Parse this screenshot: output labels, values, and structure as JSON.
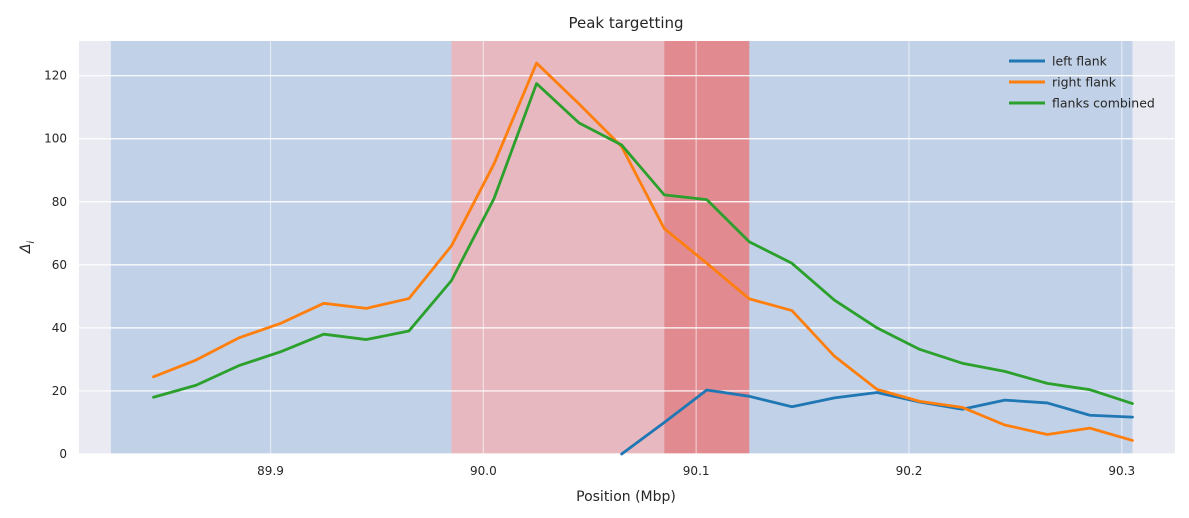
{
  "chart_data": {
    "type": "line",
    "title": "Peak targetting",
    "xlabel": "Position (Mbp)",
    "ylabel": "Δ_i",
    "xlim": [
      89.81,
      90.325
    ],
    "ylim": [
      0,
      131
    ],
    "xticks": [
      89.9,
      90.0,
      90.1,
      90.2,
      90.3
    ],
    "xtick_labels": [
      "89.9",
      "90.0",
      "90.1",
      "90.2",
      "90.3"
    ],
    "yticks": [
      0,
      20,
      40,
      60,
      80,
      100,
      120
    ],
    "ytick_labels": [
      "0",
      "20",
      "40",
      "60",
      "80",
      "100",
      "120"
    ],
    "grid": true,
    "legend_position": "top-right",
    "x": [
      89.845,
      89.865,
      89.885,
      89.905,
      89.925,
      89.945,
      89.965,
      89.985,
      90.005,
      90.025,
      90.045,
      90.065,
      90.085,
      90.105,
      90.125,
      90.145,
      90.165,
      90.185,
      90.205,
      90.225,
      90.245,
      90.265,
      90.285,
      90.305
    ],
    "series": [
      {
        "name": "left flank",
        "color": "#1f77b4",
        "values": [
          null,
          null,
          null,
          null,
          null,
          null,
          null,
          null,
          null,
          null,
          null,
          0,
          10,
          20.3,
          18.3,
          15,
          17.8,
          19.5,
          16.5,
          14.2,
          17.1,
          16.2,
          12.3,
          11.7
        ]
      },
      {
        "name": "right flank",
        "color": "#ff7f0e",
        "values": [
          24.5,
          29.8,
          36.8,
          41.5,
          47.8,
          46.2,
          49.3,
          66,
          92,
          124,
          111,
          97.5,
          71.5,
          60.5,
          49.2,
          45.5,
          31,
          20.5,
          16.7,
          14.8,
          9.2,
          6.2,
          8.2,
          4.3
        ]
      },
      {
        "name": "flanks combined",
        "color": "#2ca02c",
        "values": [
          18,
          21.8,
          28,
          32.5,
          38,
          36.3,
          39,
          55,
          81,
          117.5,
          105,
          98,
          82.2,
          80.7,
          67.3,
          60.5,
          48.8,
          40,
          33.2,
          28.8,
          26.2,
          22.4,
          20.4,
          16
        ]
      }
    ],
    "shaded_regions": [
      {
        "from": 89.825,
        "to": 89.985,
        "color": "#9fbcdf",
        "opacity": 0.55
      },
      {
        "from": 89.985,
        "to": 90.085,
        "color": "#e38e95",
        "opacity": 0.55
      },
      {
        "from": 90.085,
        "to": 90.125,
        "color": "#dd6b6f",
        "opacity": 0.75
      },
      {
        "from": 90.125,
        "to": 90.305,
        "color": "#9fbcdf",
        "opacity": 0.55
      }
    ],
    "colors": {
      "plot_background": "#eaeaf2",
      "grid": "#ffffff",
      "text": "#262626"
    }
  }
}
